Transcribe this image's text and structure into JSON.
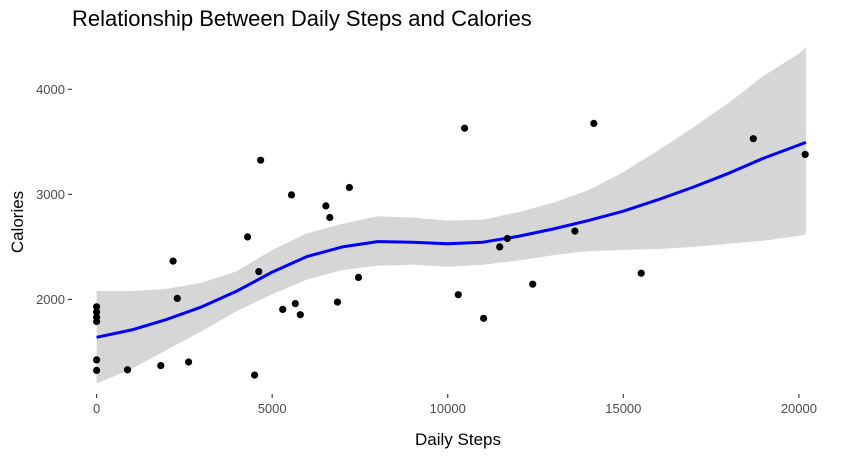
{
  "chart_data": {
    "type": "scatter",
    "title": "Relationship Between Daily Steps and Calories",
    "xlabel": "Daily Steps",
    "ylabel": "Calories",
    "xlim": [
      -700,
      20800
    ],
    "ylim": [
      1100,
      4450
    ],
    "x_ticks": [
      0,
      5000,
      10000,
      15000,
      20000
    ],
    "x_tick_labels": [
      "0",
      "5000",
      "10000",
      "15000",
      "20000"
    ],
    "y_ticks": [
      2000,
      3000,
      4000
    ],
    "y_tick_labels": [
      "2000",
      "3000",
      "4000"
    ],
    "grid": false,
    "point_color": "#000000",
    "smooth_color": "#0000ff",
    "band_color": "#d6d6d6",
    "points": [
      {
        "x": 0,
        "y": 1930
      },
      {
        "x": 0,
        "y": 1880
      },
      {
        "x": 0,
        "y": 1830
      },
      {
        "x": 0,
        "y": 1790
      },
      {
        "x": 0,
        "y": 1425
      },
      {
        "x": 0,
        "y": 1325
      },
      {
        "x": 880,
        "y": 1330
      },
      {
        "x": 1830,
        "y": 1370
      },
      {
        "x": 2180,
        "y": 2365
      },
      {
        "x": 2300,
        "y": 2010
      },
      {
        "x": 2620,
        "y": 1405
      },
      {
        "x": 4300,
        "y": 2595
      },
      {
        "x": 4500,
        "y": 1280
      },
      {
        "x": 4620,
        "y": 2265
      },
      {
        "x": 4670,
        "y": 3325
      },
      {
        "x": 5300,
        "y": 1905
      },
      {
        "x": 5550,
        "y": 2995
      },
      {
        "x": 5660,
        "y": 1960
      },
      {
        "x": 5800,
        "y": 1855
      },
      {
        "x": 6530,
        "y": 2890
      },
      {
        "x": 6640,
        "y": 2780
      },
      {
        "x": 6860,
        "y": 1975
      },
      {
        "x": 7200,
        "y": 3065
      },
      {
        "x": 7460,
        "y": 2210
      },
      {
        "x": 10300,
        "y": 2045
      },
      {
        "x": 10480,
        "y": 3630
      },
      {
        "x": 11020,
        "y": 1820
      },
      {
        "x": 11480,
        "y": 2500
      },
      {
        "x": 11700,
        "y": 2580
      },
      {
        "x": 12420,
        "y": 2145
      },
      {
        "x": 13620,
        "y": 2650
      },
      {
        "x": 14160,
        "y": 3675
      },
      {
        "x": 15510,
        "y": 2250
      },
      {
        "x": 18700,
        "y": 3530
      },
      {
        "x": 20180,
        "y": 3380
      }
    ],
    "smooth": {
      "x": [
        0,
        1000,
        2000,
        3000,
        4000,
        5000,
        6000,
        7000,
        8000,
        9000,
        10000,
        11000,
        12000,
        13000,
        14000,
        15000,
        16000,
        17000,
        18000,
        19000,
        20000,
        20200
      ],
      "y": [
        1640,
        1710,
        1810,
        1930,
        2080,
        2260,
        2410,
        2500,
        2550,
        2545,
        2530,
        2545,
        2600,
        2670,
        2750,
        2840,
        2950,
        3070,
        3200,
        3345,
        3470,
        3495
      ],
      "lower": [
        1200,
        1340,
        1520,
        1700,
        1890,
        2050,
        2190,
        2280,
        2320,
        2330,
        2310,
        2330,
        2370,
        2420,
        2460,
        2470,
        2480,
        2500,
        2530,
        2560,
        2605,
        2620
      ],
      "upper": [
        2080,
        2080,
        2100,
        2160,
        2270,
        2470,
        2630,
        2720,
        2790,
        2780,
        2750,
        2760,
        2830,
        2920,
        3040,
        3210,
        3420,
        3640,
        3870,
        4130,
        4340,
        4400
      ]
    }
  }
}
